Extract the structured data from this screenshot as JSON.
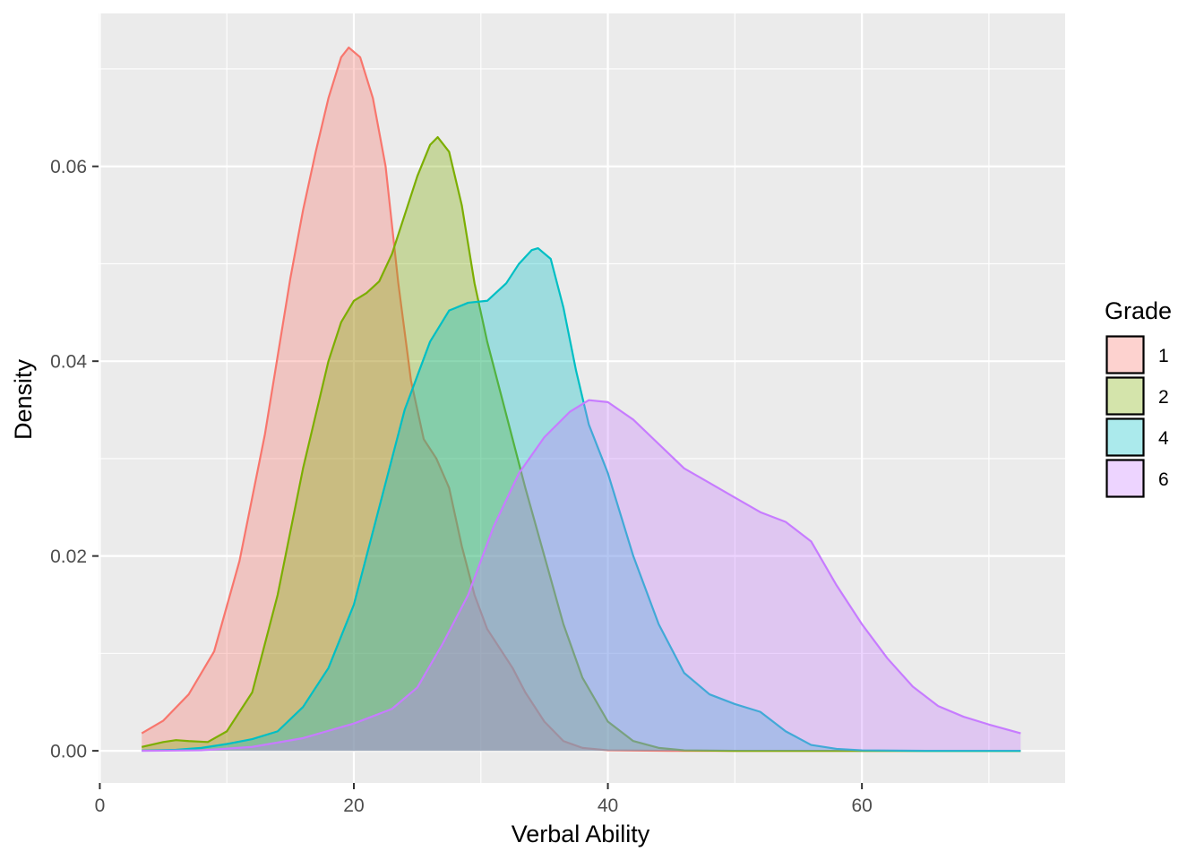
{
  "chart_data": {
    "type": "area",
    "title": "",
    "xlabel": "Verbal Ability",
    "ylabel": "Density",
    "xlim": [
      -0.1,
      76
    ],
    "ylim": [
      -0.0033,
      0.0757
    ],
    "x_ticks": [
      0,
      20,
      40,
      60
    ],
    "x_tick_labels": [
      "0",
      "20",
      "40",
      "60"
    ],
    "y_ticks": [
      0.0,
      0.02,
      0.04,
      0.06
    ],
    "y_tick_labels": [
      "0.00",
      "0.02",
      "0.04",
      "0.06"
    ],
    "grid": true,
    "legend": {
      "title": "Grade",
      "position": "right"
    },
    "series": [
      {
        "name": "1",
        "color": "#F8766D",
        "points": [
          [
            3.3,
            0.0018
          ],
          [
            5,
            0.0031
          ],
          [
            7,
            0.0058
          ],
          [
            9,
            0.0102
          ],
          [
            11,
            0.0195
          ],
          [
            13,
            0.0325
          ],
          [
            15,
            0.0485
          ],
          [
            16,
            0.0555
          ],
          [
            17,
            0.0615
          ],
          [
            18,
            0.067
          ],
          [
            19,
            0.0712
          ],
          [
            19.6,
            0.0722
          ],
          [
            20.5,
            0.0712
          ],
          [
            21.5,
            0.067
          ],
          [
            22.5,
            0.06
          ],
          [
            23.5,
            0.048
          ],
          [
            24.5,
            0.038
          ],
          [
            25.5,
            0.032
          ],
          [
            26.5,
            0.03
          ],
          [
            27.5,
            0.027
          ],
          [
            28.5,
            0.021
          ],
          [
            29.5,
            0.016
          ],
          [
            30.5,
            0.0125
          ],
          [
            31.5,
            0.0105
          ],
          [
            32.5,
            0.0085
          ],
          [
            33.5,
            0.006
          ],
          [
            35,
            0.003
          ],
          [
            36.5,
            0.001
          ],
          [
            38,
            0.0003
          ],
          [
            40,
            5e-05
          ],
          [
            45,
            0
          ],
          [
            55,
            0
          ],
          [
            65,
            0
          ],
          [
            72.5,
            0
          ]
        ]
      },
      {
        "name": "2",
        "color": "#7CAE00",
        "points": [
          [
            3.3,
            0.0004
          ],
          [
            5,
            0.0009
          ],
          [
            6,
            0.0011
          ],
          [
            7,
            0.001
          ],
          [
            8.5,
            0.0009
          ],
          [
            10,
            0.002
          ],
          [
            12,
            0.006
          ],
          [
            14,
            0.016
          ],
          [
            16,
            0.029
          ],
          [
            18,
            0.04
          ],
          [
            19,
            0.044
          ],
          [
            20,
            0.0462
          ],
          [
            21,
            0.047
          ],
          [
            22,
            0.0482
          ],
          [
            23,
            0.051
          ],
          [
            24,
            0.055
          ],
          [
            25,
            0.059
          ],
          [
            26,
            0.0622
          ],
          [
            26.6,
            0.063
          ],
          [
            27.5,
            0.0615
          ],
          [
            28.5,
            0.056
          ],
          [
            29.5,
            0.048
          ],
          [
            30.5,
            0.042
          ],
          [
            31.5,
            0.037
          ],
          [
            32.5,
            0.032
          ],
          [
            33.5,
            0.027
          ],
          [
            35,
            0.02
          ],
          [
            36.5,
            0.013
          ],
          [
            38,
            0.0075
          ],
          [
            40,
            0.003
          ],
          [
            42,
            0.001
          ],
          [
            44,
            0.0003
          ],
          [
            46,
            5e-05
          ],
          [
            50,
            0
          ],
          [
            60,
            0
          ],
          [
            72.5,
            0
          ]
        ]
      },
      {
        "name": "4",
        "color": "#00BFC4",
        "points": [
          [
            3.3,
            2e-05
          ],
          [
            6,
            0.0001
          ],
          [
            8,
            0.0003
          ],
          [
            10,
            0.0007
          ],
          [
            12,
            0.0012
          ],
          [
            14,
            0.002
          ],
          [
            16,
            0.0045
          ],
          [
            18,
            0.0085
          ],
          [
            20,
            0.015
          ],
          [
            22,
            0.025
          ],
          [
            24,
            0.035
          ],
          [
            26,
            0.042
          ],
          [
            27.5,
            0.0452
          ],
          [
            29,
            0.046
          ],
          [
            30.5,
            0.0462
          ],
          [
            32,
            0.048
          ],
          [
            33,
            0.05
          ],
          [
            34,
            0.0514
          ],
          [
            34.5,
            0.0516
          ],
          [
            35.5,
            0.0505
          ],
          [
            36.5,
            0.0455
          ],
          [
            37.5,
            0.039
          ],
          [
            38.5,
            0.0335
          ],
          [
            40,
            0.0285
          ],
          [
            42,
            0.02
          ],
          [
            44,
            0.013
          ],
          [
            46,
            0.008
          ],
          [
            48,
            0.0058
          ],
          [
            50,
            0.0048
          ],
          [
            52,
            0.004
          ],
          [
            54,
            0.002
          ],
          [
            56,
            0.0006
          ],
          [
            58,
            0.0002
          ],
          [
            60,
            5e-05
          ],
          [
            65,
            0
          ],
          [
            72.5,
            0
          ]
        ]
      },
      {
        "name": "6",
        "color": "#C77CFF",
        "points": [
          [
            3.3,
            0
          ],
          [
            8,
            5e-05
          ],
          [
            12,
            0.0004
          ],
          [
            16,
            0.0013
          ],
          [
            20,
            0.0028
          ],
          [
            23,
            0.0043
          ],
          [
            25,
            0.0065
          ],
          [
            27,
            0.011
          ],
          [
            29,
            0.016
          ],
          [
            31,
            0.023
          ],
          [
            33,
            0.0285
          ],
          [
            35,
            0.0322
          ],
          [
            37,
            0.0348
          ],
          [
            38.5,
            0.036
          ],
          [
            40,
            0.0358
          ],
          [
            42,
            0.034
          ],
          [
            44,
            0.0315
          ],
          [
            46,
            0.029
          ],
          [
            48,
            0.0275
          ],
          [
            50,
            0.026
          ],
          [
            52,
            0.0245
          ],
          [
            54,
            0.0235
          ],
          [
            56,
            0.0215
          ],
          [
            58,
            0.017
          ],
          [
            60,
            0.013
          ],
          [
            62,
            0.0095
          ],
          [
            64,
            0.0066
          ],
          [
            66,
            0.0046
          ],
          [
            68,
            0.0035
          ],
          [
            70,
            0.0027
          ],
          [
            72.5,
            0.0018
          ]
        ]
      }
    ]
  }
}
